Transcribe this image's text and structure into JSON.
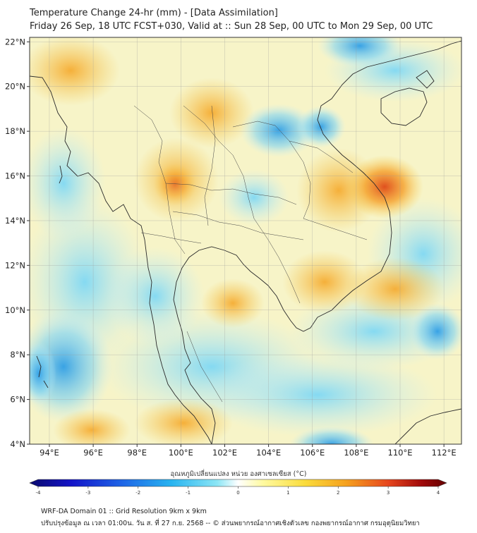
{
  "title": {
    "line1": "Temperature Change 24-hr (mm) - [Data Assimilation]",
    "line2": "Friday 26 Sep, 18 UTC FCST+030, Valid at :: Sun 28 Sep, 00 UTC to Mon 29 Sep, 00 UTC"
  },
  "map": {
    "lat_ticks": [
      "22°N",
      "20°N",
      "18°N",
      "16°N",
      "14°N",
      "12°N",
      "10°N",
      "8°N",
      "6°N",
      "4°N"
    ],
    "lon_ticks": [
      "94°E",
      "96°E",
      "98°E",
      "100°E",
      "102°E",
      "104°E",
      "106°E",
      "108°E",
      "110°E",
      "112°E"
    ],
    "lat_range": [
      4,
      22.2
    ],
    "lon_range": [
      93.1,
      112.8
    ],
    "grid": true,
    "background_color": "#f6f6cf"
  },
  "colorbar": {
    "label": "อุณหภูมิเปลี่ยนแปลง หน่วย องศาเซลเซียส (°C)",
    "ticks": [
      "-4",
      "-3",
      "-2",
      "-1",
      "0",
      "1",
      "2",
      "3",
      "4"
    ],
    "range": [
      -4,
      4
    ],
    "colors": [
      "#0a0a6e",
      "#1414c8",
      "#1e64e6",
      "#28b4f0",
      "#8ce6f5",
      "#ffffff",
      "#fffaa0",
      "#fadc3c",
      "#f5a01e",
      "#e6461e",
      "#a00a0a",
      "#640000"
    ]
  },
  "footer": {
    "line1": "WRF-DA Domain 01 :: Grid Resolution 9km x 9km",
    "line2": "ปรับปรุงข้อมูล ณ เวลา 01:00น. วัน ส. ที่ 27 ก.ย. 2568 -- © ส่วนพยากรณ์อากาศเชิงตัวเลข กองพยากรณ์อากาศ กรมอุตุนิยมวิทยา"
  },
  "features": [
    {
      "kind": "warm",
      "color": "#f0a020",
      "lon": 108.7,
      "lat": 15.5
    },
    {
      "kind": "warm",
      "color": "#f5c040",
      "lon": 99.4,
      "lat": 15.8
    },
    {
      "kind": "cool",
      "color": "#3aa8e8",
      "lon": 104.2,
      "lat": 18.2
    },
    {
      "kind": "cool",
      "color": "#40b8f0",
      "lon": 93.5,
      "lat": 6.8
    }
  ]
}
